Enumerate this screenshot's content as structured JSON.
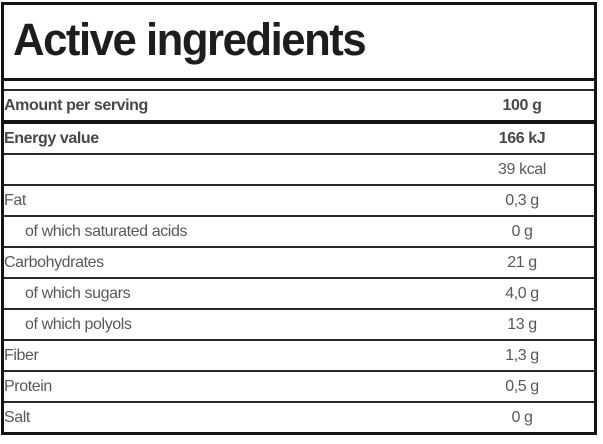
{
  "header": {
    "title": "Active ingredients"
  },
  "table": {
    "rows": [
      {
        "label": "Amount per serving",
        "value": "100 g",
        "style": "bold-thick"
      },
      {
        "label": "Energy value",
        "value": "166 kJ",
        "style": "bold"
      },
      {
        "label": "",
        "value": "39 kcal",
        "style": "normal"
      },
      {
        "label": "Fat",
        "value": "0,3 g",
        "style": "normal"
      },
      {
        "label": "of which saturated acids",
        "value": "0 g",
        "style": "indent"
      },
      {
        "label": "Carbohydrates",
        "value": "21 g",
        "style": "normal"
      },
      {
        "label": "of which sugars",
        "value": "4,0 g",
        "style": "indent"
      },
      {
        "label": "of which polyols",
        "value": "13 g",
        "style": "indent"
      },
      {
        "label": "Fiber",
        "value": "1,3 g",
        "style": "normal"
      },
      {
        "label": "Protein",
        "value": "0,5 g",
        "style": "normal"
      },
      {
        "label": "Salt",
        "value": "0 g",
        "style": "normal"
      }
    ]
  },
  "colors": {
    "border-dark": "#141414",
    "border-thin": "#29292b",
    "title-color": "#1d1d1f",
    "text-normal": "#56585d",
    "text-bold": "#46484c"
  }
}
